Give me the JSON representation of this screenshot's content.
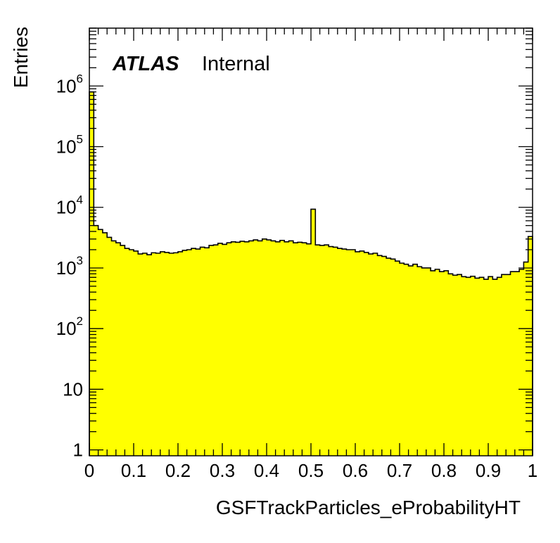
{
  "chart_data": {
    "type": "histogram",
    "xlabel": "GSFTrackParticles_eProbabilityHT",
    "ylabel": "Entries",
    "label_bold": "ATLAS",
    "label_status": "Internal",
    "x_range": [
      0,
      1
    ],
    "y_scale": "log",
    "y_range": [
      0.8,
      9000000
    ],
    "fill_color": "#ffff00",
    "line_color": "#000000",
    "x_ticks": [
      "0",
      "0.1",
      "0.2",
      "0.3",
      "0.4",
      "0.5",
      "0.6",
      "0.7",
      "0.8",
      "0.9",
      "1"
    ],
    "y_ticks": [
      {
        "value": 1,
        "base": "1",
        "exp": ""
      },
      {
        "value": 10,
        "base": "10",
        "exp": ""
      },
      {
        "value": 100,
        "base": "10",
        "exp": "2"
      },
      {
        "value": 1000,
        "base": "10",
        "exp": "3"
      },
      {
        "value": 10000,
        "base": "10",
        "exp": "4"
      },
      {
        "value": 100000,
        "base": "10",
        "exp": "5"
      },
      {
        "value": 1000000,
        "base": "10",
        "exp": "6"
      }
    ],
    "bin_width": 0.01,
    "values": [
      800000,
      5000,
      4300,
      3800,
      3200,
      2800,
      2600,
      2350,
      2100,
      2000,
      1900,
      1700,
      1750,
      1650,
      1780,
      1750,
      1850,
      1800,
      1750,
      1780,
      1850,
      1950,
      2000,
      2100,
      2050,
      2200,
      2150,
      2350,
      2400,
      2550,
      2450,
      2600,
      2700,
      2650,
      2750,
      2700,
      2800,
      2900,
      2800,
      3000,
      2900,
      2800,
      2700,
      2850,
      2700,
      2800,
      2600,
      2650,
      2600,
      2500,
      9300,
      2400,
      2350,
      2400,
      2250,
      2200,
      2100,
      2050,
      2000,
      2000,
      1850,
      1900,
      1800,
      1700,
      1750,
      1600,
      1550,
      1450,
      1400,
      1300,
      1200,
      1150,
      1080,
      1150,
      1050,
      1000,
      1000,
      900,
      950,
      870,
      900,
      800,
      760,
      780,
      720,
      700,
      730,
      680,
      700,
      650,
      720,
      650,
      700,
      780,
      780,
      870,
      870,
      950,
      1250,
      3300
    ]
  }
}
